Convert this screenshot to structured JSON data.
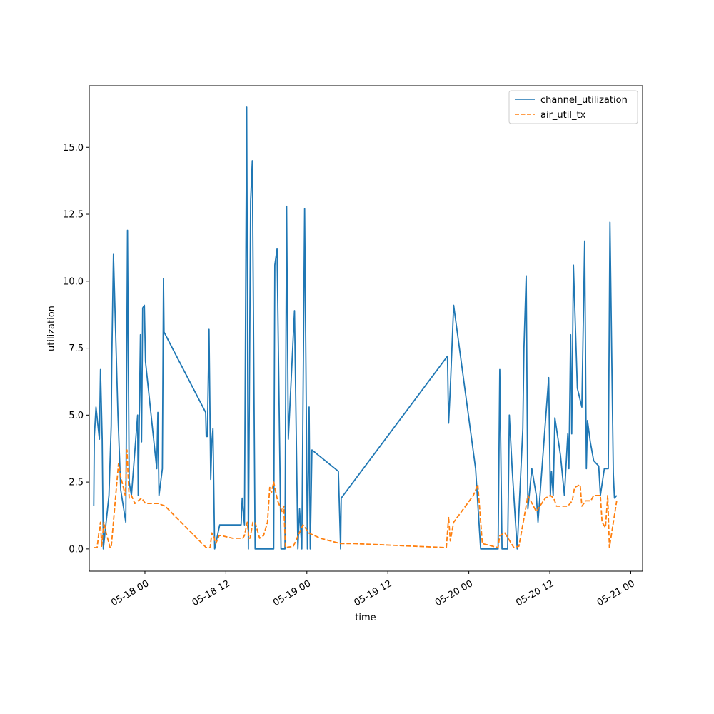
{
  "chart_data": {
    "type": "line",
    "title": "",
    "xlabel": "time",
    "ylabel": "utilization",
    "x_axis": {
      "type": "datetime",
      "range": [
        "2024-05-17 15:45",
        "2024-05-21 01:45"
      ],
      "tick_values": [
        "2024-05-18 00:00",
        "2024-05-18 12:00",
        "2024-05-19 00:00",
        "2024-05-19 12:00",
        "2024-05-20 00:00",
        "2024-05-20 12:00",
        "2024-05-21 00:00"
      ],
      "tick_labels": [
        "05-18 00",
        "05-18 12",
        "05-19 00",
        "05-19 12",
        "05-20 00",
        "05-20 12",
        "05-21 00"
      ]
    },
    "y_axis": {
      "range": [
        -0.83,
        17.3
      ],
      "tick_values": [
        0,
        2.5,
        5,
        7.5,
        10,
        12.5,
        15
      ],
      "tick_labels": [
        "0.0",
        "2.5",
        "5.0",
        "7.5",
        "10.0",
        "12.5",
        "15.0"
      ]
    },
    "grid": false,
    "legend": {
      "placement": "top-right"
    },
    "series": [
      {
        "name": "channel_utilization",
        "color": "#1f77b4",
        "style": "solid",
        "points": [
          [
            "2024-05-17 16:25",
            1.6
          ],
          [
            "2024-05-17 16:30",
            4.2
          ],
          [
            "2024-05-17 16:45",
            5.3
          ],
          [
            "2024-05-17 17:15",
            4.1
          ],
          [
            "2024-05-17 17:25",
            6.7
          ],
          [
            "2024-05-17 17:40",
            4.1
          ],
          [
            "2024-05-17 17:50",
            0.0
          ],
          [
            "2024-05-17 18:40",
            2.0
          ],
          [
            "2024-05-17 19:00",
            4.6
          ],
          [
            "2024-05-17 19:05",
            7.0
          ],
          [
            "2024-05-17 19:20",
            11.0
          ],
          [
            "2024-05-17 20:00",
            5.0
          ],
          [
            "2024-05-17 20:25",
            2.2
          ],
          [
            "2024-05-17 21:10",
            1.0
          ],
          [
            "2024-05-17 21:25",
            11.9
          ],
          [
            "2024-05-17 21:40",
            2.5
          ],
          [
            "2024-05-17 22:00",
            2.0
          ],
          [
            "2024-05-17 22:55",
            5.0
          ],
          [
            "2024-05-17 23:00",
            2.0
          ],
          [
            "2024-05-17 23:20",
            8.0
          ],
          [
            "2024-05-17 23:30",
            4.0
          ],
          [
            "2024-05-17 23:40",
            9.0
          ],
          [
            "2024-05-17 23:55",
            9.1
          ],
          [
            "2024-05-18 00:05",
            7.0
          ],
          [
            "2024-05-18 01:45",
            3.0
          ],
          [
            "2024-05-18 01:55",
            5.1
          ],
          [
            "2024-05-18 02:05",
            2.0
          ],
          [
            "2024-05-18 02:35",
            3.0
          ],
          [
            "2024-05-18 02:45",
            10.1
          ],
          [
            "2024-05-18 02:50",
            8.1
          ],
          [
            "2024-05-18 09:00",
            5.1
          ],
          [
            "2024-05-18 09:05",
            4.2
          ],
          [
            "2024-05-18 09:15",
            4.2
          ],
          [
            "2024-05-18 09:30",
            8.2
          ],
          [
            "2024-05-18 09:45",
            2.6
          ],
          [
            "2024-05-18 09:55",
            4.0
          ],
          [
            "2024-05-18 10:05",
            4.5
          ],
          [
            "2024-05-18 10:20",
            0.0
          ],
          [
            "2024-05-18 11:05",
            0.9
          ],
          [
            "2024-05-18 14:15",
            0.9
          ],
          [
            "2024-05-18 14:25",
            1.9
          ],
          [
            "2024-05-18 14:45",
            0.9
          ],
          [
            "2024-05-18 15:05",
            16.5
          ],
          [
            "2024-05-18 15:20",
            0.0
          ],
          [
            "2024-05-18 15:40",
            13.0
          ],
          [
            "2024-05-18 15:55",
            14.5
          ],
          [
            "2024-05-18 16:20",
            0.0
          ],
          [
            "2024-05-18 18:10",
            0.0
          ],
          [
            "2024-05-18 19:05",
            0.0
          ],
          [
            "2024-05-18 19:15",
            10.6
          ],
          [
            "2024-05-18 19:35",
            11.2
          ],
          [
            "2024-05-18 20:10",
            0.0
          ],
          [
            "2024-05-18 20:25",
            0.0
          ],
          [
            "2024-05-18 20:45",
            0.0
          ],
          [
            "2024-05-18 21:00",
            12.8
          ],
          [
            "2024-05-18 21:15",
            4.1
          ],
          [
            "2024-05-18 22:10",
            8.9
          ],
          [
            "2024-05-18 22:40",
            0.0
          ],
          [
            "2024-05-18 22:55",
            1.5
          ],
          [
            "2024-05-18 23:15",
            0.0
          ],
          [
            "2024-05-18 23:40",
            12.7
          ],
          [
            "2024-05-19 00:05",
            0.0
          ],
          [
            "2024-05-19 00:20",
            5.3
          ],
          [
            "2024-05-19 00:30",
            0.0
          ],
          [
            "2024-05-19 00:45",
            3.7
          ],
          [
            "2024-05-19 04:40",
            2.9
          ],
          [
            "2024-05-19 05:00",
            0.0
          ],
          [
            "2024-05-19 05:05",
            1.9
          ],
          [
            "2024-05-19 20:50",
            7.2
          ],
          [
            "2024-05-19 21:00",
            4.7
          ],
          [
            "2024-05-19 21:15",
            6.0
          ],
          [
            "2024-05-19 21:45",
            9.1
          ],
          [
            "2024-05-20 01:00",
            3.0
          ],
          [
            "2024-05-20 01:45",
            0.0
          ],
          [
            "2024-05-20 03:30",
            0.0
          ],
          [
            "2024-05-20 04:20",
            0.0
          ],
          [
            "2024-05-20 04:35",
            6.7
          ],
          [
            "2024-05-20 04:55",
            0.0
          ],
          [
            "2024-05-20 05:45",
            0.0
          ],
          [
            "2024-05-20 06:00",
            5.0
          ],
          [
            "2024-05-20 06:25",
            3.0
          ],
          [
            "2024-05-20 07:10",
            0.0
          ],
          [
            "2024-05-20 08:00",
            4.5
          ],
          [
            "2024-05-20 08:10",
            7.5
          ],
          [
            "2024-05-20 08:30",
            10.2
          ],
          [
            "2024-05-20 08:45",
            1.5
          ],
          [
            "2024-05-20 09:20",
            3.0
          ],
          [
            "2024-05-20 10:00",
            2.0
          ],
          [
            "2024-05-20 10:15",
            1.0
          ],
          [
            "2024-05-20 11:50",
            6.4
          ],
          [
            "2024-05-20 12:05",
            2.0
          ],
          [
            "2024-05-20 12:15",
            2.9
          ],
          [
            "2024-05-20 12:30",
            2.0
          ],
          [
            "2024-05-20 12:45",
            4.9
          ],
          [
            "2024-05-20 13:35",
            3.5
          ],
          [
            "2024-05-20 14:10",
            2.0
          ],
          [
            "2024-05-20 14:40",
            4.3
          ],
          [
            "2024-05-20 14:50",
            3.0
          ],
          [
            "2024-05-20 15:05",
            8.0
          ],
          [
            "2024-05-20 15:15",
            4.3
          ],
          [
            "2024-05-20 15:30",
            10.6
          ],
          [
            "2024-05-20 16:05",
            6.0
          ],
          [
            "2024-05-20 16:45",
            5.3
          ],
          [
            "2024-05-20 17:10",
            11.5
          ],
          [
            "2024-05-20 17:25",
            3.0
          ],
          [
            "2024-05-20 17:35",
            4.8
          ],
          [
            "2024-05-20 18:00",
            4.0
          ],
          [
            "2024-05-20 18:30",
            3.3
          ],
          [
            "2024-05-20 19:15",
            3.1
          ],
          [
            "2024-05-20 19:30",
            2.0
          ],
          [
            "2024-05-20 20:05",
            3.0
          ],
          [
            "2024-05-20 20:40",
            3.0
          ],
          [
            "2024-05-20 20:55",
            12.2
          ],
          [
            "2024-05-20 21:25",
            2.8
          ],
          [
            "2024-05-20 21:35",
            1.9
          ],
          [
            "2024-05-20 21:55",
            2.0
          ]
        ]
      },
      {
        "name": "air_util_tx",
        "color": "#ff7f0e",
        "style": "dashed",
        "points": [
          [
            "2024-05-17 16:25",
            0.05
          ],
          [
            "2024-05-17 16:55",
            0.05
          ],
          [
            "2024-05-17 17:10",
            0.6
          ],
          [
            "2024-05-17 17:25",
            1.0
          ],
          [
            "2024-05-17 17:35",
            0.1
          ],
          [
            "2024-05-17 17:55",
            1.0
          ],
          [
            "2024-05-17 18:15",
            0.6
          ],
          [
            "2024-05-17 18:50",
            0.05
          ],
          [
            "2024-05-17 19:00",
            0.05
          ],
          [
            "2024-05-17 20:05",
            3.2
          ],
          [
            "2024-05-17 20:25",
            2.7
          ],
          [
            "2024-05-17 21:05",
            2.0
          ],
          [
            "2024-05-17 21:20",
            3.7
          ],
          [
            "2024-05-17 21:40",
            1.9
          ],
          [
            "2024-05-17 22:00",
            2.0
          ],
          [
            "2024-05-17 22:30",
            1.7
          ],
          [
            "2024-05-17 23:30",
            1.9
          ],
          [
            "2024-05-18 00:05",
            1.7
          ],
          [
            "2024-05-18 02:00",
            1.7
          ],
          [
            "2024-05-18 03:00",
            1.6
          ],
          [
            "2024-05-18 09:05",
            0.05
          ],
          [
            "2024-05-18 09:40",
            0.05
          ],
          [
            "2024-05-18 09:55",
            0.6
          ],
          [
            "2024-05-18 10:10",
            0.5
          ],
          [
            "2024-05-18 10:30",
            0.2
          ],
          [
            "2024-05-18 11:00",
            0.5
          ],
          [
            "2024-05-18 11:20",
            0.5
          ],
          [
            "2024-05-18 13:00",
            0.4
          ],
          [
            "2024-05-18 14:30",
            0.4
          ],
          [
            "2024-05-18 14:45",
            0.5
          ],
          [
            "2024-05-18 15:10",
            1.0
          ],
          [
            "2024-05-18 15:25",
            0.4
          ],
          [
            "2024-05-18 15:35",
            0.4
          ],
          [
            "2024-05-18 16:00",
            1.0
          ],
          [
            "2024-05-18 16:20",
            1.0
          ],
          [
            "2024-05-18 17:00",
            0.4
          ],
          [
            "2024-05-18 17:35",
            0.5
          ],
          [
            "2024-05-18 18:10",
            1.0
          ],
          [
            "2024-05-18 18:30",
            2.3
          ],
          [
            "2024-05-18 18:45",
            2.1
          ],
          [
            "2024-05-18 19:05",
            2.5
          ],
          [
            "2024-05-18 19:40",
            1.8
          ],
          [
            "2024-05-18 20:20",
            1.4
          ],
          [
            "2024-05-18 20:35",
            1.6
          ],
          [
            "2024-05-18 20:50",
            0.05
          ],
          [
            "2024-05-18 22:00",
            0.1
          ],
          [
            "2024-05-18 23:25",
            0.9
          ],
          [
            "2024-05-18 23:45",
            0.8
          ],
          [
            "2024-05-19 00:15",
            0.6
          ],
          [
            "2024-05-19 02:00",
            0.4
          ],
          [
            "2024-05-19 05:00",
            0.2
          ],
          [
            "2024-05-19 07:00",
            0.2
          ],
          [
            "2024-05-19 20:40",
            0.05
          ],
          [
            "2024-05-19 21:00",
            1.2
          ],
          [
            "2024-05-19 21:15",
            0.3
          ],
          [
            "2024-05-19 21:45",
            1.0
          ],
          [
            "2024-05-20 00:40",
            2.0
          ],
          [
            "2024-05-20 01:20",
            2.4
          ],
          [
            "2024-05-20 02:00",
            0.2
          ],
          [
            "2024-05-20 04:20",
            0.05
          ],
          [
            "2024-05-20 04:35",
            0.5
          ],
          [
            "2024-05-20 05:20",
            0.6
          ],
          [
            "2024-05-20 06:40",
            0.05
          ],
          [
            "2024-05-20 07:25",
            0.1
          ],
          [
            "2024-05-20 08:25",
            1.5
          ],
          [
            "2024-05-20 08:45",
            2.0
          ],
          [
            "2024-05-20 10:00",
            1.4
          ],
          [
            "2024-05-20 11:20",
            1.9
          ],
          [
            "2024-05-20 12:05",
            2.0
          ],
          [
            "2024-05-20 12:35",
            1.9
          ],
          [
            "2024-05-20 13:00",
            1.6
          ],
          [
            "2024-05-20 14:40",
            1.6
          ],
          [
            "2024-05-20 15:20",
            1.8
          ],
          [
            "2024-05-20 15:40",
            2.3
          ],
          [
            "2024-05-20 16:30",
            2.4
          ],
          [
            "2024-05-20 16:45",
            1.6
          ],
          [
            "2024-05-20 17:20",
            1.8
          ],
          [
            "2024-05-20 18:05",
            1.8
          ],
          [
            "2024-05-20 18:30",
            2.0
          ],
          [
            "2024-05-20 19:30",
            2.0
          ],
          [
            "2024-05-20 19:45",
            1.0
          ],
          [
            "2024-05-20 20:15",
            0.8
          ],
          [
            "2024-05-20 20:35",
            2.0
          ],
          [
            "2024-05-20 20:50",
            0.05
          ],
          [
            "2024-05-20 21:55",
            1.8
          ]
        ]
      }
    ]
  }
}
